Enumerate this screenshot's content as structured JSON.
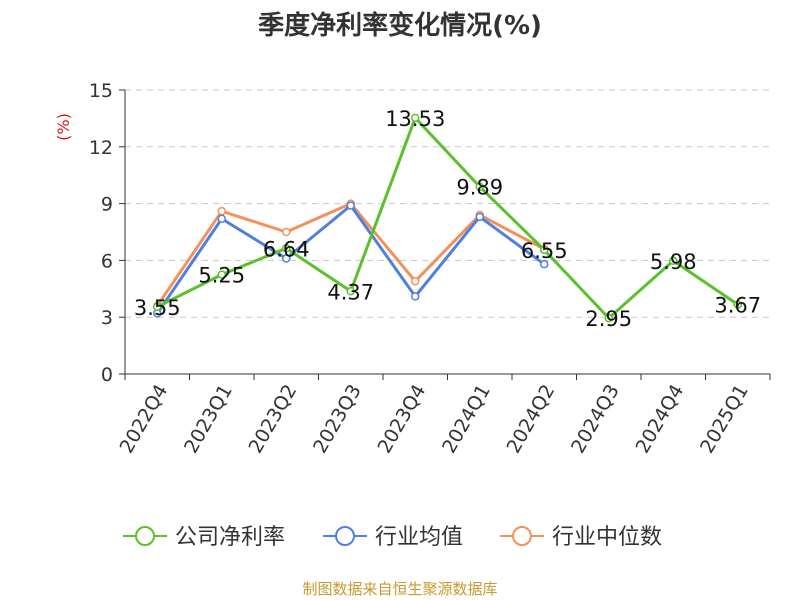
{
  "chart_data": {
    "type": "line",
    "title": "季度净利率变化情况(%)",
    "ylabel": "(%)",
    "xlabel": "",
    "categories": [
      "2022Q4",
      "2023Q1",
      "2023Q2",
      "2023Q3",
      "2023Q4",
      "2024Q1",
      "2024Q2",
      "2024Q3",
      "2024Q4",
      "2025Q1"
    ],
    "ylim": [
      0,
      15
    ],
    "yticks": [
      0,
      3,
      6,
      9,
      12,
      15
    ],
    "grid": true,
    "legend_position": "bottom",
    "series": [
      {
        "name": "公司净利率",
        "color": "#5ac12b",
        "values": [
          3.55,
          5.25,
          6.64,
          4.37,
          13.53,
          9.89,
          6.55,
          2.95,
          5.98,
          3.67
        ],
        "data_labels": [
          "3.55",
          "5.25",
          "6.64",
          "4.37",
          "13.53",
          "9.89",
          "6.55",
          "2.95",
          "5.98",
          "3.67"
        ]
      },
      {
        "name": "行业均值",
        "color": "#4f80e0",
        "values": [
          3.2,
          8.2,
          6.1,
          8.9,
          4.1,
          8.3,
          5.8,
          null,
          null,
          null
        ]
      },
      {
        "name": "行业中位数",
        "color": "#f5905a",
        "values": [
          3.6,
          8.6,
          7.5,
          9.0,
          4.9,
          8.4,
          6.6,
          null,
          null,
          null
        ]
      }
    ]
  },
  "footer": {
    "source": "制图数据来自恒生聚源数据库"
  }
}
